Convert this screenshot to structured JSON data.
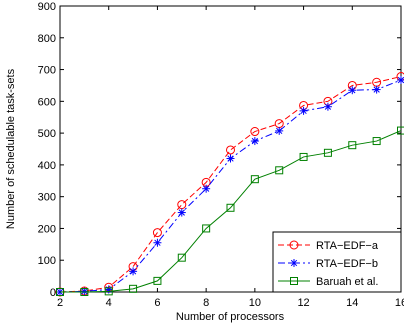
{
  "chart_data": {
    "type": "line",
    "title": "",
    "xlabel": "Number of processors",
    "ylabel": "Number of schedulable task-sets",
    "xlim": [
      2,
      16
    ],
    "ylim": [
      0,
      900
    ],
    "x_ticks": [
      2,
      4,
      6,
      8,
      10,
      12,
      14,
      16
    ],
    "x_tick_labels": [
      "2",
      "4",
      "6",
      "8",
      "10",
      "12",
      "14",
      "16"
    ],
    "y_ticks": [
      0,
      100,
      200,
      300,
      400,
      500,
      600,
      700,
      800,
      900
    ],
    "y_tick_labels": [
      "0",
      "100",
      "200",
      "300",
      "400",
      "500",
      "600",
      "700",
      "800",
      "900"
    ],
    "grid": false,
    "legend_position": "bottom-right",
    "x": [
      2,
      3,
      4,
      5,
      6,
      7,
      8,
      9,
      10,
      11,
      12,
      13,
      14,
      15,
      16
    ],
    "series": [
      {
        "name": "RTA−EDF−a",
        "color": "#ff0000",
        "line_style": "dashed",
        "marker": "circle",
        "values": [
          0,
          3,
          15,
          80,
          187,
          275,
          345,
          447,
          505,
          530,
          587,
          600,
          650,
          660,
          678
        ]
      },
      {
        "name": "RTA−EDF−b",
        "color": "#0000ff",
        "line_style": "dash-dot",
        "marker": "asterisk",
        "values": [
          0,
          2,
          8,
          65,
          155,
          250,
          325,
          420,
          475,
          507,
          570,
          583,
          635,
          637,
          667
        ]
      },
      {
        "name": "Baruah et al.",
        "color": "#008000",
        "line_style": "solid",
        "marker": "square",
        "values": [
          0,
          0,
          2,
          10,
          35,
          108,
          200,
          265,
          355,
          383,
          425,
          438,
          462,
          475,
          508
        ]
      }
    ]
  }
}
